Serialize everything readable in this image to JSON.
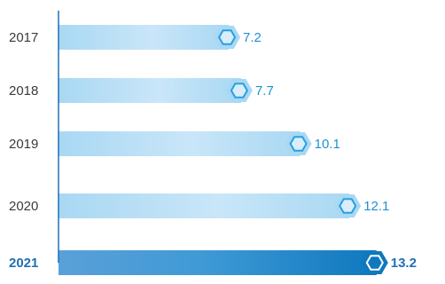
{
  "chart_data": {
    "type": "bar",
    "orientation": "horizontal",
    "categories": [
      "2017",
      "2018",
      "2019",
      "2020",
      "2021"
    ],
    "values": [
      7.2,
      7.7,
      10.1,
      12.1,
      13.2
    ],
    "highlight_index": 4,
    "title": "",
    "xlabel": "",
    "ylabel": "",
    "xlim": [
      0,
      14.9
    ],
    "grid": false,
    "colors": {
      "bar_light": "#a9d8f3",
      "bar_light_mid": "#c9e6f8",
      "bar_dark_start": "#5aa0d8",
      "bar_dark_end": "#0f78be",
      "label_text": "#1e91d2",
      "category_text": "#3a3a3a",
      "category_highlight": "#1f6fb5",
      "axis": "#1f6fb5",
      "marker_stroke": "#2a9fe0"
    }
  }
}
